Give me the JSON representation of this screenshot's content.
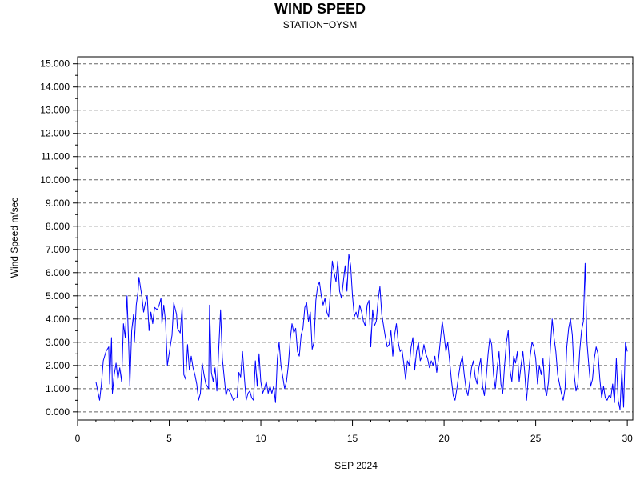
{
  "chart_data": {
    "type": "line",
    "title": "WIND SPEED",
    "subtitle": "STATION=OYSM",
    "xlabel": "SEP 2024",
    "ylabel": "Wind Speed m/sec",
    "xlim": [
      0,
      30.3
    ],
    "ylim": [
      -0.35,
      15.3
    ],
    "x_ticks": [
      0,
      5,
      10,
      15,
      20,
      25,
      30
    ],
    "x_tick_labels": [
      "0",
      "5",
      "10",
      "15",
      "20",
      "25",
      "30"
    ],
    "y_ticks": [
      0,
      1,
      2,
      3,
      4,
      5,
      6,
      7,
      8,
      9,
      10,
      11,
      12,
      13,
      14,
      15
    ],
    "y_tick_labels": [
      "0.000",
      "1.000",
      "2.000",
      "3.000",
      "4.000",
      "5.000",
      "6.000",
      "7.000",
      "8.000",
      "9.000",
      "10.000",
      "11.000",
      "12.000",
      "13.000",
      "14.000",
      "15.000"
    ],
    "grid": "horizontal-dashed",
    "series": [
      {
        "color": "#0000ff",
        "points": [
          [
            1.0,
            1.3
          ],
          [
            1.1,
            0.9
          ],
          [
            1.2,
            0.5
          ],
          [
            1.3,
            1.2
          ],
          [
            1.4,
            2.2
          ],
          [
            1.55,
            2.6
          ],
          [
            1.7,
            2.8
          ],
          [
            1.75,
            1.2
          ],
          [
            1.85,
            3.2
          ],
          [
            1.9,
            0.8
          ],
          [
            2.0,
            1.6
          ],
          [
            2.1,
            2.1
          ],
          [
            2.2,
            1.4
          ],
          [
            2.3,
            1.9
          ],
          [
            2.4,
            1.3
          ],
          [
            2.5,
            3.8
          ],
          [
            2.6,
            3.2
          ],
          [
            2.7,
            5.0
          ],
          [
            2.8,
            2.6
          ],
          [
            2.85,
            1.1
          ],
          [
            2.95,
            3.5
          ],
          [
            3.05,
            4.2
          ],
          [
            3.1,
            3.0
          ],
          [
            3.2,
            4.6
          ],
          [
            3.3,
            5.2
          ],
          [
            3.35,
            5.8
          ],
          [
            3.5,
            5.0
          ],
          [
            3.6,
            4.3
          ],
          [
            3.7,
            4.7
          ],
          [
            3.8,
            5.0
          ],
          [
            3.9,
            3.5
          ],
          [
            4.0,
            4.3
          ],
          [
            4.1,
            3.8
          ],
          [
            4.2,
            4.5
          ],
          [
            4.35,
            4.4
          ],
          [
            4.45,
            4.6
          ],
          [
            4.55,
            4.9
          ],
          [
            4.6,
            3.8
          ],
          [
            4.7,
            4.6
          ],
          [
            4.8,
            3.9
          ],
          [
            4.9,
            2.0
          ],
          [
            5.05,
            2.8
          ],
          [
            5.15,
            3.3
          ],
          [
            5.25,
            4.7
          ],
          [
            5.4,
            4.2
          ],
          [
            5.45,
            3.6
          ],
          [
            5.6,
            3.4
          ],
          [
            5.7,
            4.5
          ],
          [
            5.8,
            1.6
          ],
          [
            5.9,
            1.4
          ],
          [
            6.0,
            2.9
          ],
          [
            6.1,
            1.8
          ],
          [
            6.2,
            2.4
          ],
          [
            6.3,
            1.9
          ],
          [
            6.4,
            1.6
          ],
          [
            6.5,
            1.2
          ],
          [
            6.6,
            0.5
          ],
          [
            6.7,
            0.8
          ],
          [
            6.8,
            2.1
          ],
          [
            6.9,
            1.6
          ],
          [
            7.0,
            1.2
          ],
          [
            7.15,
            1.0
          ],
          [
            7.2,
            4.6
          ],
          [
            7.3,
            1.7
          ],
          [
            7.4,
            1.3
          ],
          [
            7.5,
            1.9
          ],
          [
            7.6,
            0.9
          ],
          [
            7.7,
            2.7
          ],
          [
            7.8,
            4.4
          ],
          [
            7.9,
            2.3
          ],
          [
            8.0,
            1.5
          ],
          [
            8.1,
            0.7
          ],
          [
            8.2,
            1.0
          ],
          [
            8.35,
            0.8
          ],
          [
            8.5,
            0.5
          ],
          [
            8.6,
            0.6
          ],
          [
            8.7,
            0.6
          ],
          [
            8.8,
            1.7
          ],
          [
            8.9,
            1.5
          ],
          [
            9.0,
            2.6
          ],
          [
            9.1,
            1.5
          ],
          [
            9.2,
            0.5
          ],
          [
            9.3,
            0.8
          ],
          [
            9.4,
            0.9
          ],
          [
            9.5,
            0.6
          ],
          [
            9.6,
            0.5
          ],
          [
            9.7,
            2.2
          ],
          [
            9.8,
            1.1
          ],
          [
            9.9,
            2.5
          ],
          [
            10.0,
            1.3
          ],
          [
            10.1,
            0.8
          ],
          [
            10.2,
            1.0
          ],
          [
            10.3,
            1.3
          ],
          [
            10.4,
            0.8
          ],
          [
            10.5,
            1.1
          ],
          [
            10.6,
            0.8
          ],
          [
            10.7,
            1.1
          ],
          [
            10.8,
            0.4
          ],
          [
            10.9,
            2.3
          ],
          [
            11.0,
            3.0
          ],
          [
            11.1,
            2.0
          ],
          [
            11.2,
            1.5
          ],
          [
            11.3,
            1.0
          ],
          [
            11.4,
            1.3
          ],
          [
            11.5,
            2.0
          ],
          [
            11.6,
            3.1
          ],
          [
            11.7,
            3.8
          ],
          [
            11.8,
            3.4
          ],
          [
            11.9,
            3.6
          ],
          [
            12.0,
            2.6
          ],
          [
            12.1,
            2.4
          ],
          [
            12.2,
            3.3
          ],
          [
            12.3,
            3.6
          ],
          [
            12.4,
            4.5
          ],
          [
            12.5,
            4.7
          ],
          [
            12.6,
            3.9
          ],
          [
            12.7,
            4.3
          ],
          [
            12.8,
            2.7
          ],
          [
            12.9,
            3.0
          ],
          [
            13.0,
            4.8
          ],
          [
            13.1,
            5.4
          ],
          [
            13.2,
            5.6
          ],
          [
            13.3,
            5.0
          ],
          [
            13.4,
            4.6
          ],
          [
            13.5,
            4.9
          ],
          [
            13.6,
            4.3
          ],
          [
            13.7,
            4.1
          ],
          [
            13.8,
            5.2
          ],
          [
            13.9,
            6.5
          ],
          [
            14.0,
            6.0
          ],
          [
            14.1,
            5.6
          ],
          [
            14.2,
            6.5
          ],
          [
            14.3,
            5.2
          ],
          [
            14.4,
            4.9
          ],
          [
            14.5,
            5.6
          ],
          [
            14.6,
            6.3
          ],
          [
            14.7,
            5.2
          ],
          [
            14.8,
            6.8
          ],
          [
            14.9,
            6.3
          ],
          [
            15.0,
            5.0
          ],
          [
            15.1,
            4.1
          ],
          [
            15.2,
            4.3
          ],
          [
            15.3,
            4.0
          ],
          [
            15.4,
            4.6
          ],
          [
            15.5,
            4.3
          ],
          [
            15.6,
            3.9
          ],
          [
            15.7,
            3.7
          ],
          [
            15.8,
            4.6
          ],
          [
            15.9,
            4.8
          ],
          [
            16.0,
            2.8
          ],
          [
            16.1,
            4.4
          ],
          [
            16.2,
            3.7
          ],
          [
            16.3,
            3.9
          ],
          [
            16.4,
            4.8
          ],
          [
            16.5,
            5.4
          ],
          [
            16.6,
            4.2
          ],
          [
            16.7,
            3.7
          ],
          [
            16.8,
            3.2
          ],
          [
            16.9,
            2.8
          ],
          [
            17.0,
            2.9
          ],
          [
            17.1,
            3.5
          ],
          [
            17.2,
            2.4
          ],
          [
            17.3,
            3.3
          ],
          [
            17.4,
            3.8
          ],
          [
            17.5,
            3.0
          ],
          [
            17.6,
            2.6
          ],
          [
            17.7,
            2.7
          ],
          [
            17.8,
            2.1
          ],
          [
            17.9,
            1.4
          ],
          [
            18.0,
            2.2
          ],
          [
            18.1,
            2.0
          ],
          [
            18.2,
            2.8
          ],
          [
            18.3,
            3.2
          ],
          [
            18.4,
            1.8
          ],
          [
            18.5,
            2.6
          ],
          [
            18.6,
            3.0
          ],
          [
            18.7,
            2.2
          ],
          [
            18.8,
            2.4
          ],
          [
            18.9,
            2.9
          ],
          [
            19.0,
            2.5
          ],
          [
            19.1,
            2.3
          ],
          [
            19.2,
            1.9
          ],
          [
            19.3,
            2.2
          ],
          [
            19.4,
            2.0
          ],
          [
            19.5,
            2.4
          ],
          [
            19.6,
            1.7
          ],
          [
            19.7,
            2.3
          ],
          [
            19.8,
            3.1
          ],
          [
            19.9,
            3.9
          ],
          [
            20.0,
            3.3
          ],
          [
            20.1,
            2.6
          ],
          [
            20.2,
            3.0
          ],
          [
            20.3,
            2.2
          ],
          [
            20.4,
            1.4
          ],
          [
            20.5,
            0.7
          ],
          [
            20.6,
            0.5
          ],
          [
            20.7,
            1.0
          ],
          [
            20.8,
            1.6
          ],
          [
            20.9,
            2.1
          ],
          [
            21.0,
            2.4
          ],
          [
            21.1,
            1.6
          ],
          [
            21.2,
            1.0
          ],
          [
            21.3,
            0.7
          ],
          [
            21.4,
            1.3
          ],
          [
            21.5,
            1.9
          ],
          [
            21.6,
            2.2
          ],
          [
            21.7,
            1.5
          ],
          [
            21.8,
            1.2
          ],
          [
            21.9,
            1.9
          ],
          [
            22.0,
            2.3
          ],
          [
            22.1,
            1.1
          ],
          [
            22.2,
            0.7
          ],
          [
            22.3,
            1.5
          ],
          [
            22.4,
            2.5
          ],
          [
            22.5,
            3.2
          ],
          [
            22.6,
            2.9
          ],
          [
            22.7,
            1.6
          ],
          [
            22.8,
            1.0
          ],
          [
            22.9,
            1.9
          ],
          [
            23.0,
            2.6
          ],
          [
            23.1,
            1.2
          ],
          [
            23.2,
            0.8
          ],
          [
            23.3,
            2.0
          ],
          [
            23.4,
            3.0
          ],
          [
            23.5,
            3.5
          ],
          [
            23.6,
            1.8
          ],
          [
            23.7,
            1.3
          ],
          [
            23.8,
            2.4
          ],
          [
            23.9,
            2.1
          ],
          [
            24.0,
            2.6
          ],
          [
            24.1,
            1.3
          ],
          [
            24.2,
            2.0
          ],
          [
            24.3,
            2.6
          ],
          [
            24.4,
            1.7
          ],
          [
            24.5,
            0.5
          ],
          [
            24.6,
            1.5
          ],
          [
            24.7,
            2.4
          ],
          [
            24.8,
            3.0
          ],
          [
            24.9,
            2.8
          ],
          [
            25.0,
            2.3
          ],
          [
            25.1,
            1.2
          ],
          [
            25.2,
            2.0
          ],
          [
            25.3,
            1.6
          ],
          [
            25.4,
            2.3
          ],
          [
            25.5,
            1.0
          ],
          [
            25.6,
            0.7
          ],
          [
            25.7,
            1.3
          ],
          [
            25.8,
            2.7
          ],
          [
            25.9,
            4.0
          ],
          [
            26.0,
            3.2
          ],
          [
            26.1,
            2.6
          ],
          [
            26.2,
            1.6
          ],
          [
            26.3,
            1.2
          ],
          [
            26.4,
            0.8
          ],
          [
            26.5,
            0.5
          ],
          [
            26.6,
            1.0
          ],
          [
            26.7,
            2.8
          ],
          [
            26.8,
            3.6
          ],
          [
            26.9,
            4.0
          ],
          [
            27.0,
            3.3
          ],
          [
            27.1,
            1.6
          ],
          [
            27.2,
            0.9
          ],
          [
            27.3,
            1.2
          ],
          [
            27.4,
            2.6
          ],
          [
            27.5,
            3.5
          ],
          [
            27.6,
            3.9
          ],
          [
            27.7,
            6.4
          ],
          [
            27.8,
            3.0
          ],
          [
            27.9,
            2.0
          ],
          [
            28.0,
            1.1
          ],
          [
            28.1,
            1.4
          ],
          [
            28.2,
            2.3
          ],
          [
            28.3,
            2.8
          ],
          [
            28.4,
            2.5
          ],
          [
            28.5,
            1.4
          ],
          [
            28.6,
            0.6
          ],
          [
            28.7,
            1.1
          ],
          [
            28.8,
            0.6
          ],
          [
            28.9,
            0.5
          ],
          [
            29.0,
            0.7
          ],
          [
            29.1,
            0.6
          ],
          [
            29.2,
            1.2
          ],
          [
            29.3,
            0.4
          ],
          [
            29.4,
            2.3
          ],
          [
            29.5,
            0.5
          ],
          [
            29.6,
            0.1
          ],
          [
            29.7,
            1.8
          ],
          [
            29.8,
            0.2
          ],
          [
            29.9,
            3.0
          ],
          [
            30.0,
            2.6
          ]
        ]
      }
    ]
  }
}
